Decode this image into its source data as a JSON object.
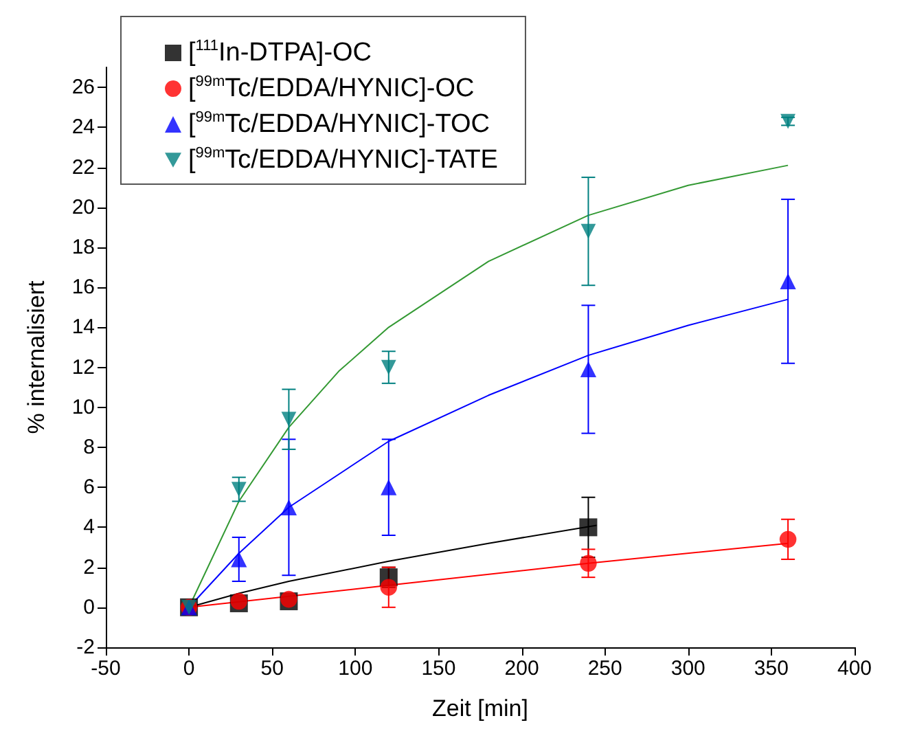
{
  "chart_data": {
    "type": "scatter",
    "xlabel": "Zeit [min]",
    "ylabel": "% internalisiert",
    "xlim": [
      -50,
      400
    ],
    "xticks": [
      -50,
      0,
      50,
      100,
      150,
      200,
      250,
      300,
      350,
      400
    ],
    "ylim": [
      -2,
      27
    ],
    "yticks": [
      -2,
      0,
      2,
      4,
      6,
      8,
      10,
      12,
      14,
      16,
      18,
      20,
      22,
      24,
      26
    ],
    "grid": false,
    "legend": "top left",
    "series": [
      {
        "name": "[$^{111}$In-DTPA]-OC",
        "color": "#000000",
        "marker": "square",
        "x": [
          0,
          30,
          60,
          120,
          240
        ],
        "values": [
          0,
          0.2,
          0.3,
          1.5,
          4.0
        ],
        "errors": [
          null,
          null,
          null,
          0.5,
          1.5
        ]
      },
      {
        "name": "[$^{99m}$Tc/EDDA/HYNIC]-OC",
        "color": "#ff0000",
        "marker": "circle",
        "x": [
          0,
          30,
          60,
          120,
          240,
          360
        ],
        "values": [
          0,
          0.3,
          0.4,
          1.0,
          2.2,
          3.4
        ],
        "errors": [
          null,
          null,
          null,
          1.0,
          0.7,
          1.0
        ]
      },
      {
        "name": "[$^{99m}$Tc/EDDA/HYNIC]-TOC",
        "color": "#0000ff",
        "marker": "triangle",
        "x": [
          0,
          30,
          60,
          120,
          240,
          360
        ],
        "values": [
          0,
          2.4,
          5.0,
          6.0,
          11.9,
          16.3
        ],
        "errors": [
          null,
          1.1,
          3.4,
          2.4,
          3.2,
          4.1
        ]
      },
      {
        "name": "[$^{99m}$Tc/EDDA/HYNIC]-TATE",
        "color": "#008080",
        "marker": "triangle-down",
        "x": [
          0,
          30,
          60,
          120,
          240,
          360
        ],
        "values": [
          0,
          5.9,
          9.4,
          12.0,
          18.8,
          24.3
        ],
        "errors": [
          null,
          0.6,
          1.5,
          0.8,
          2.7,
          0.2
        ]
      },
      {
        "type": "line",
        "color": "#000000",
        "marker": "none",
        "x": [
          0,
          30,
          60,
          120,
          180,
          245
        ],
        "values": [
          0,
          0.7,
          1.3,
          2.3,
          3.2,
          4.1
        ]
      },
      {
        "type": "line",
        "color": "#ff0000",
        "marker": "none",
        "x": [
          0,
          120,
          240,
          360
        ],
        "values": [
          0,
          1.1,
          2.2,
          3.2
        ]
      },
      {
        "type": "line",
        "color": "#0000ff",
        "marker": "none",
        "x": [
          0,
          30,
          60,
          120,
          180,
          240,
          300,
          360
        ],
        "values": [
          0,
          2.7,
          5.0,
          8.3,
          10.6,
          12.6,
          14.1,
          15.4
        ]
      },
      {
        "type": "line",
        "color": "#339933",
        "marker": "none",
        "x": [
          0,
          30,
          60,
          90,
          120,
          180,
          240,
          300,
          360
        ],
        "values": [
          0,
          5.3,
          9.0,
          11.8,
          14.0,
          17.3,
          19.6,
          21.1,
          22.1
        ]
      }
    ]
  }
}
